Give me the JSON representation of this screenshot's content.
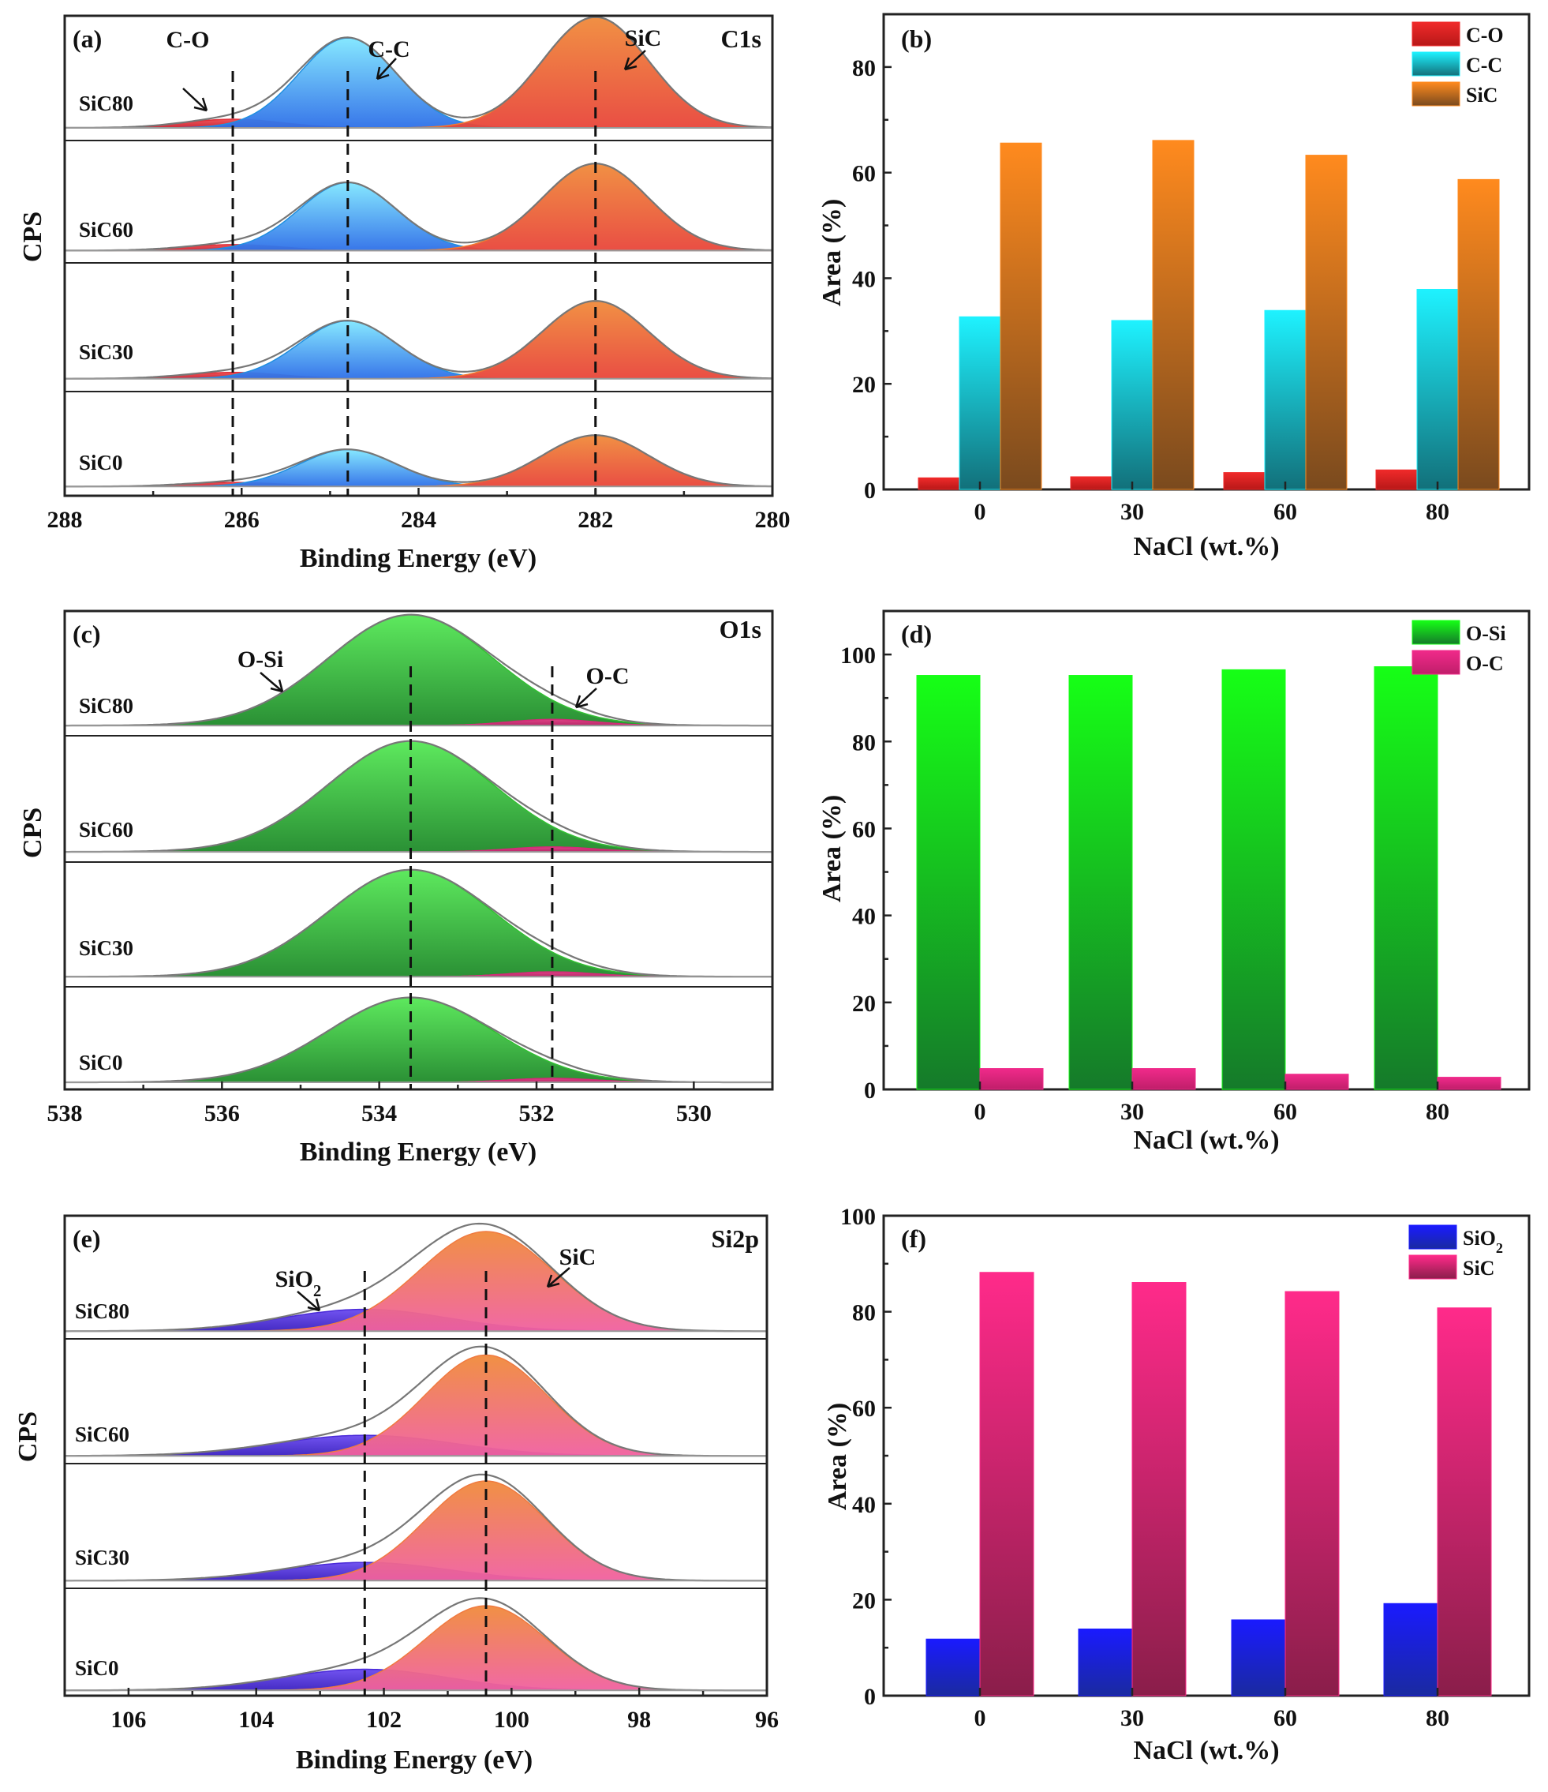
{
  "xps_panels": [
    {
      "label": "(a)",
      "region": "C1s",
      "xlabel": "Binding Energy (eV)",
      "ylabel": "CPS",
      "x_range": [
        288,
        280
      ],
      "x_ticks": [
        288,
        286,
        284,
        282,
        280
      ],
      "samples": [
        "SiC80",
        "SiC60",
        "SiC30",
        "SiC0"
      ],
      "guides": [
        286.1,
        284.8,
        282.0
      ],
      "components": [
        {
          "name": "C-O",
          "center": 286.1,
          "color": "#e0303a",
          "gradient_top": "#f04a4f",
          "gradient_bottom": "#c8202f"
        },
        {
          "name": "C-C",
          "center": 284.8,
          "color": "#1f8fe0",
          "gradient_top": "#7fe6ff",
          "gradient_bottom": "#2d6fe8"
        },
        {
          "name": "SiC",
          "center": 282.0,
          "color": "#f07a30",
          "gradient_top": "#f08a3a",
          "gradient_bottom": "#e8453a"
        }
      ],
      "annotations": [
        {
          "text": "C-O",
          "component": "C-O"
        },
        {
          "text": "C-C",
          "component": "C-C"
        },
        {
          "text": "SiC",
          "component": "SiC"
        }
      ]
    },
    {
      "label": "(c)",
      "region": "O1s",
      "xlabel": "Binding Energy (eV)",
      "ylabel": "CPS",
      "x_range": [
        538,
        529
      ],
      "x_ticks": [
        538,
        536,
        534,
        532,
        530
      ],
      "samples": [
        "SiC80",
        "SiC60",
        "SiC30",
        "SiC0"
      ],
      "guides": [
        533.6,
        531.8
      ],
      "components": [
        {
          "name": "O-Si",
          "center": 533.6,
          "color": "#33c033",
          "gradient_top": "#55e855",
          "gradient_bottom": "#1f8a2a"
        },
        {
          "name": "O-C",
          "center": 531.8,
          "color": "#d42a78",
          "gradient_top": "#e8408a",
          "gradient_bottom": "#c0206a"
        }
      ],
      "annotations": [
        {
          "text": "O-Si",
          "component": "O-Si"
        },
        {
          "text": "O-C",
          "component": "O-C"
        }
      ]
    },
    {
      "label": "(e)",
      "region": "Si2p",
      "xlabel": "Binding Energy (eV)",
      "ylabel": "CPS",
      "x_range": [
        107,
        96
      ],
      "x_ticks": [
        106,
        104,
        102,
        100,
        98,
        96
      ],
      "samples": [
        "SiC80",
        "SiC60",
        "SiC30",
        "SiC0"
      ],
      "guides": [
        102.3,
        100.4
      ],
      "components": [
        {
          "name": "SiO2",
          "center": 102.3,
          "color": "#4a2ad8",
          "gradient_top": "#6a4af0",
          "gradient_bottom": "#3a20c0"
        },
        {
          "name": "SiC",
          "center": 100.4,
          "color": "#f07a40",
          "gradient_top": "#f08a3a",
          "gradient_bottom": "#f060a0"
        }
      ],
      "annotations": [
        {
          "text": "SiO2",
          "component": "SiO2"
        },
        {
          "text": "SiC",
          "component": "SiC"
        }
      ]
    }
  ],
  "chart_data": [
    {
      "type": "bar",
      "label": "(b)",
      "xlabel": "NaCl (wt.%)",
      "ylabel": "Area (%)",
      "categories": [
        "0",
        "30",
        "60",
        "80"
      ],
      "ylim": [
        0,
        90
      ],
      "yticks": [
        0,
        20,
        40,
        60,
        80
      ],
      "legend_position": "top-right",
      "series": [
        {
          "name": "C-O",
          "values": [
            2.2,
            2.4,
            3.2,
            3.7
          ],
          "color_top": "#f02a2a",
          "color_bottom": "#b81818"
        },
        {
          "name": "C-C",
          "values": [
            32.7,
            32.0,
            33.9,
            37.9
          ],
          "color_top": "#1ef2ff",
          "color_bottom": "#12707a"
        },
        {
          "name": "SiC",
          "values": [
            65.6,
            66.1,
            63.3,
            58.7
          ],
          "color_top": "#ff8a1e",
          "color_bottom": "#7a4a1e"
        }
      ]
    },
    {
      "type": "bar",
      "label": "(d)",
      "xlabel": "NaCl (wt.%)",
      "ylabel": "Area (%)",
      "categories": [
        "0",
        "30",
        "60",
        "80"
      ],
      "ylim": [
        0,
        110
      ],
      "yticks": [
        0,
        20,
        40,
        60,
        80,
        100
      ],
      "legend_position": "top-right",
      "series": [
        {
          "name": "O-Si",
          "values": [
            95.2,
            95.2,
            96.5,
            97.2
          ],
          "color_top": "#16ff16",
          "color_bottom": "#157a2a"
        },
        {
          "name": "O-C",
          "values": [
            4.8,
            4.8,
            3.5,
            2.8
          ],
          "color_top": "#f02a8a",
          "color_bottom": "#c01e6a"
        }
      ]
    },
    {
      "type": "bar",
      "label": "(f)",
      "xlabel": "NaCl (wt.%)",
      "ylabel": "Area (%)",
      "categories": [
        "0",
        "30",
        "60",
        "80"
      ],
      "ylim": [
        0,
        100
      ],
      "yticks": [
        0,
        20,
        40,
        60,
        80,
        100
      ],
      "legend_position": "top-right",
      "series": [
        {
          "name": "SiO2",
          "values": [
            11.8,
            13.9,
            15.8,
            19.2
          ],
          "color_top": "#1a1aff",
          "color_bottom": "#1a2aa0"
        },
        {
          "name": "SiC",
          "values": [
            88.2,
            86.1,
            84.2,
            80.8
          ],
          "color_top": "#ff2a8a",
          "color_bottom": "#8a1e4a"
        }
      ]
    }
  ]
}
